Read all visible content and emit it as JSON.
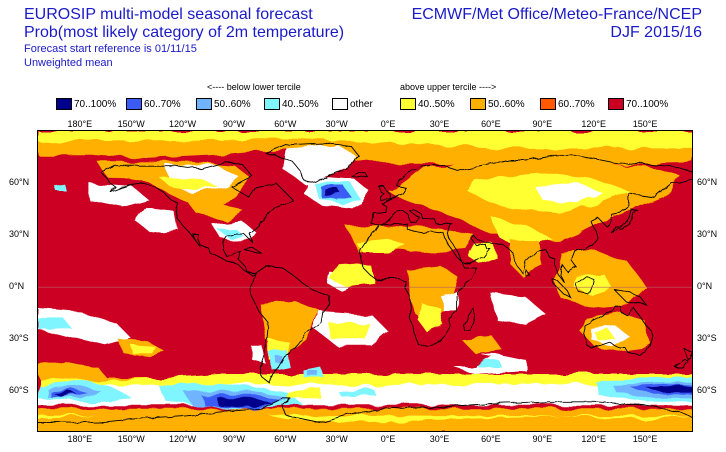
{
  "header": {
    "title_line1": "EUROSIP multi-model seasonal forecast",
    "title_line2": "Prob(most likely category of 2m temperature)",
    "subtitle_line1": "Forecast start reference is 01/11/15",
    "subtitle_line2": "Unweighted mean",
    "centres": "ECMWF/Met Office/Meteo-France/NCEP",
    "season": "DJF 2015/16"
  },
  "legend": {
    "below_heading": "<---- below lower tercile",
    "above_heading": "above upper tercile ---->",
    "items": [
      {
        "label": "70..100%",
        "color": "#00008b"
      },
      {
        "label": "60..70%",
        "color": "#3a5cf5"
      },
      {
        "label": "50..60%",
        "color": "#6fb4ff"
      },
      {
        "label": "40..50%",
        "color": "#7ff5ff"
      },
      {
        "label": "other",
        "color": "#ffffff"
      },
      {
        "label": "40..50%",
        "color": "#ffff33"
      },
      {
        "label": "50..60%",
        "color": "#ffb000"
      },
      {
        "label": "60..70%",
        "color": "#ff5a00"
      },
      {
        "label": "70..100%",
        "color": "#cc0022"
      }
    ]
  },
  "axes": {
    "lon_labels": [
      "180°E",
      "150°W",
      "120°W",
      "90°W",
      "60°W",
      "30°W",
      "0°E",
      "30°E",
      "60°E",
      "90°E",
      "120°E",
      "150°E"
    ],
    "lat_labels_left": [
      "60°N",
      "30°N",
      "0°N",
      "30°S",
      "60°S"
    ],
    "lat_labels_right": [
      "60°N",
      "30°N",
      "0°N",
      "30°S",
      "60°S"
    ]
  },
  "map_data": {
    "projection": "equirectangular",
    "lon_range": [
      -205,
      178
    ],
    "lat_range": [
      -84,
      90
    ],
    "dominant_category": "70..100% above upper tercile over most oceans and low latitudes",
    "cold_regions": [
      "North Atlantic south of Greenland",
      "Southern Ocean south of Pacific",
      "Southern Ocean south of Australia",
      "Southern Ocean south-west Indian Ocean"
    ]
  }
}
